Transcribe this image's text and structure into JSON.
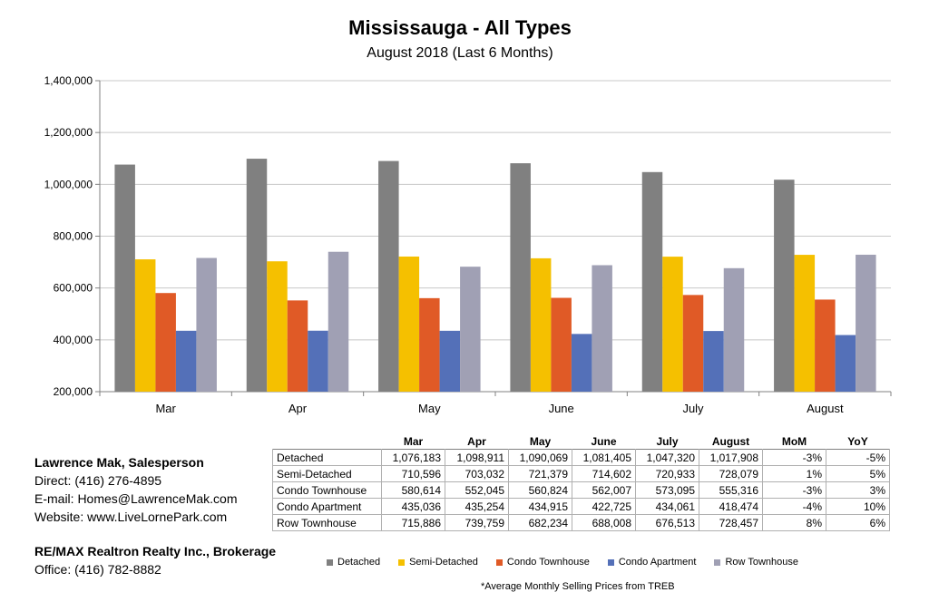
{
  "header": {
    "title": "Mississauga - All Types",
    "subtitle": "August 2018 (Last 6 Months)"
  },
  "chart_data": {
    "type": "bar",
    "title": "Mississauga - All Types",
    "subtitle": "August 2018 (Last 6 Months)",
    "categories": [
      "Mar",
      "Apr",
      "May",
      "June",
      "July",
      "August"
    ],
    "ylim": [
      200000,
      1400000
    ],
    "yticks": [
      200000,
      400000,
      600000,
      800000,
      1000000,
      1200000,
      1400000
    ],
    "ytick_labels": [
      "200,000",
      "400,000",
      "600,000",
      "800,000",
      "1,000,000",
      "1,200,000",
      "1,400,000"
    ],
    "grid": true,
    "legend_position": "bottom",
    "series": [
      {
        "name": "Detached",
        "color": "#808080",
        "values": [
          1076183,
          1098911,
          1090069,
          1081405,
          1047320,
          1017908
        ]
      },
      {
        "name": "Semi-Detached",
        "color": "#f5c000",
        "values": [
          710596,
          703032,
          721379,
          714602,
          720933,
          728079
        ]
      },
      {
        "name": "Condo Townhouse",
        "color": "#e05a26",
        "values": [
          580614,
          552045,
          560824,
          562007,
          573095,
          555316
        ]
      },
      {
        "name": "Condo Apartment",
        "color": "#5470b8",
        "values": [
          435036,
          435254,
          434915,
          422725,
          434061,
          418474
        ]
      },
      {
        "name": "Row Townhouse",
        "color": "#a0a0b4",
        "values": [
          715886,
          739759,
          682234,
          688008,
          676513,
          728457
        ]
      }
    ]
  },
  "table": {
    "columns": [
      "Mar",
      "Apr",
      "May",
      "June",
      "July",
      "August",
      "MoM",
      "YoY"
    ],
    "rows": [
      {
        "label": "Detached",
        "cells": [
          "1,076,183",
          "1,098,911",
          "1,090,069",
          "1,081,405",
          "1,047,320",
          "1,017,908",
          "-3%",
          "-5%"
        ]
      },
      {
        "label": "Semi-Detached",
        "cells": [
          "710,596",
          "703,032",
          "721,379",
          "714,602",
          "720,933",
          "728,079",
          "1%",
          "5%"
        ]
      },
      {
        "label": "Condo Townhouse",
        "cells": [
          "580,614",
          "552,045",
          "560,824",
          "562,007",
          "573,095",
          "555,316",
          "-3%",
          "3%"
        ]
      },
      {
        "label": "Condo Apartment",
        "cells": [
          "435,036",
          "435,254",
          "434,915",
          "422,725",
          "434,061",
          "418,474",
          "-4%",
          "10%"
        ]
      },
      {
        "label": "Row Townhouse",
        "cells": [
          "715,886",
          "739,759",
          "682,234",
          "688,008",
          "676,513",
          "728,457",
          "8%",
          "6%"
        ]
      }
    ]
  },
  "contact": {
    "name": "Lawrence Mak, Salesperson",
    "direct": "Direct:  (416) 276-4895",
    "email": "E-mail:  Homes@LawrenceMak.com",
    "website": "Website: www.LiveLornePark.com"
  },
  "broker": {
    "name": "RE/MAX Realtron Realty Inc., Brokerage",
    "office": "Office: (416) 782-8882"
  },
  "footnote": "*Average Monthly Selling Prices  from TREB"
}
